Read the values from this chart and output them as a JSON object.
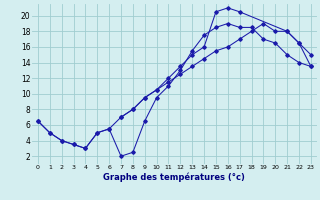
{
  "title": "Graphe des températures (°c)",
  "background_color": "#d4eef0",
  "grid_color": "#a0cdd0",
  "line_color": "#1a1aaa",
  "x_ticks": [
    0,
    1,
    2,
    3,
    4,
    5,
    6,
    7,
    8,
    9,
    10,
    11,
    12,
    13,
    14,
    15,
    16,
    17,
    18,
    19,
    20,
    21,
    22,
    23
  ],
  "y_ticks": [
    2,
    4,
    6,
    8,
    10,
    12,
    14,
    16,
    18,
    20
  ],
  "xlim": [
    -0.5,
    23.5
  ],
  "ylim": [
    1.0,
    21.5
  ],
  "line1_x": [
    0,
    1,
    2,
    3,
    4,
    5,
    6,
    7,
    8,
    9,
    10,
    11,
    12,
    13,
    14,
    15,
    16,
    17,
    18,
    19,
    20,
    21,
    22,
    23
  ],
  "line1_y": [
    6.5,
    5.0,
    4.0,
    3.5,
    3.0,
    5.0,
    5.5,
    2.0,
    2.5,
    6.5,
    9.5,
    11.0,
    13.0,
    15.5,
    17.5,
    18.5,
    19.0,
    18.5,
    18.5,
    17.0,
    16.5,
    15.0,
    14.0,
    13.5
  ],
  "line2_x": [
    0,
    1,
    2,
    3,
    4,
    5,
    6,
    7,
    8,
    9,
    10,
    11,
    12,
    13,
    14,
    15,
    16,
    17,
    21,
    22,
    23
  ],
  "line2_y": [
    6.5,
    5.0,
    4.0,
    3.5,
    3.0,
    5.0,
    5.5,
    7.0,
    8.0,
    9.5,
    10.5,
    12.0,
    13.5,
    15.0,
    16.0,
    20.5,
    21.0,
    20.5,
    18.0,
    16.5,
    15.0
  ],
  "line3_x": [
    7,
    8,
    9,
    10,
    11,
    12,
    13,
    14,
    15,
    16,
    17,
    18,
    19,
    20,
    21,
    22,
    23
  ],
  "line3_y": [
    7.0,
    8.0,
    9.5,
    10.5,
    11.5,
    12.5,
    13.5,
    14.5,
    15.5,
    16.0,
    17.0,
    18.0,
    19.0,
    18.0,
    18.0,
    16.5,
    13.5
  ]
}
